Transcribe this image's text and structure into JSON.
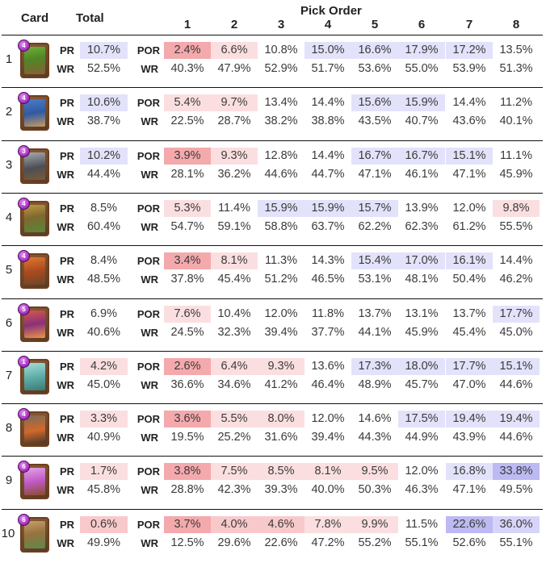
{
  "headers": {
    "card": "Card",
    "total": "Total",
    "pick_order": "Pick Order",
    "picks": [
      "1",
      "2",
      "3",
      "4",
      "5",
      "6",
      "7",
      "8"
    ]
  },
  "labels": {
    "pr": "PR",
    "wr": "WR",
    "por": "POR"
  },
  "colors": {
    "low_strong": "#f4a9ac",
    "low_mid": "#f8c9cb",
    "low_light": "#fbdfe0",
    "high_light": "#e3e2fb",
    "high_mid": "#d6d4f8",
    "high_strong": "#bdb9f2"
  },
  "rows": [
    {
      "num": "1",
      "card_icon": "goblin-barrel-card-icon",
      "elixir": "4",
      "pr": "10.7%",
      "pr_shade": "high_light",
      "wr": "52.5%",
      "por": [
        "2.4%",
        "6.6%",
        "10.8%",
        "15.0%",
        "16.6%",
        "17.9%",
        "17.2%",
        "13.5%"
      ],
      "por_shade": [
        "low_strong",
        "low_light",
        "",
        "high_light",
        "high_light",
        "high_light",
        "high_light",
        ""
      ],
      "pwr": [
        "40.3%",
        "47.9%",
        "52.9%",
        "51.7%",
        "53.6%",
        "55.0%",
        "53.9%",
        "51.3%"
      ]
    },
    {
      "num": "2",
      "card_icon": "magic-archer-card-icon",
      "elixir": "4",
      "pr": "10.6%",
      "pr_shade": "high_light",
      "wr": "38.7%",
      "por": [
        "5.4%",
        "9.7%",
        "13.4%",
        "14.4%",
        "15.6%",
        "15.9%",
        "14.4%",
        "11.2%"
      ],
      "por_shade": [
        "low_light",
        "low_light",
        "",
        "",
        "high_light",
        "high_light",
        "",
        ""
      ],
      "pwr": [
        "22.5%",
        "28.7%",
        "38.2%",
        "38.8%",
        "43.5%",
        "40.7%",
        "43.6%",
        "40.1%"
      ]
    },
    {
      "num": "3",
      "card_icon": "cannon-card-icon",
      "elixir": "3",
      "pr": "10.2%",
      "pr_shade": "high_light",
      "wr": "44.4%",
      "por": [
        "3.9%",
        "9.3%",
        "12.8%",
        "14.4%",
        "16.7%",
        "16.7%",
        "15.1%",
        "11.1%"
      ],
      "por_shade": [
        "low_strong",
        "low_light",
        "",
        "",
        "high_light",
        "high_light",
        "high_light",
        ""
      ],
      "pwr": [
        "28.1%",
        "36.2%",
        "44.6%",
        "44.7%",
        "47.1%",
        "46.1%",
        "47.1%",
        "45.9%"
      ]
    },
    {
      "num": "4",
      "card_icon": "goblin-hut-card-icon",
      "elixir": "4",
      "pr": "8.5%",
      "pr_shade": "",
      "wr": "60.4%",
      "por": [
        "5.3%",
        "11.4%",
        "15.9%",
        "15.9%",
        "15.7%",
        "13.9%",
        "12.0%",
        "9.8%"
      ],
      "por_shade": [
        "low_light",
        "",
        "high_light",
        "high_light",
        "high_light",
        "",
        "",
        "low_light"
      ],
      "pwr": [
        "54.7%",
        "59.1%",
        "58.8%",
        "63.7%",
        "62.2%",
        "62.3%",
        "61.2%",
        "55.5%"
      ]
    },
    {
      "num": "5",
      "card_icon": "bomb-tower-card-icon",
      "elixir": "4",
      "pr": "8.4%",
      "pr_shade": "",
      "wr": "48.5%",
      "por": [
        "3.4%",
        "8.1%",
        "11.3%",
        "14.3%",
        "15.4%",
        "17.0%",
        "16.1%",
        "14.4%"
      ],
      "por_shade": [
        "low_strong",
        "low_light",
        "",
        "",
        "high_light",
        "high_light",
        "high_light",
        ""
      ],
      "pwr": [
        "37.8%",
        "45.4%",
        "51.2%",
        "46.5%",
        "53.1%",
        "48.1%",
        "50.4%",
        "46.2%"
      ]
    },
    {
      "num": "6",
      "card_icon": "wizard-card-icon",
      "elixir": "5",
      "pr": "6.9%",
      "pr_shade": "",
      "wr": "40.6%",
      "por": [
        "7.6%",
        "10.4%",
        "12.0%",
        "11.8%",
        "13.7%",
        "13.1%",
        "13.7%",
        "17.7%"
      ],
      "por_shade": [
        "low_light",
        "",
        "",
        "",
        "",
        "",
        "",
        "high_light"
      ],
      "pwr": [
        "24.5%",
        "32.3%",
        "39.4%",
        "37.7%",
        "44.1%",
        "45.9%",
        "45.4%",
        "45.0%"
      ]
    },
    {
      "num": "7",
      "card_icon": "ice-spirit-card-icon",
      "elixir": "1",
      "pr": "4.2%",
      "pr_shade": "low_light",
      "wr": "45.0%",
      "por": [
        "2.6%",
        "6.4%",
        "9.3%",
        "13.6%",
        "17.3%",
        "18.0%",
        "17.7%",
        "15.1%"
      ],
      "por_shade": [
        "low_strong",
        "low_light",
        "low_light",
        "",
        "high_light",
        "high_light",
        "high_light",
        "high_light"
      ],
      "pwr": [
        "36.6%",
        "34.6%",
        "41.2%",
        "46.4%",
        "48.9%",
        "45.7%",
        "47.0%",
        "44.6%"
      ]
    },
    {
      "num": "8",
      "card_icon": "furnace-card-icon",
      "elixir": "4",
      "pr": "3.3%",
      "pr_shade": "low_light",
      "wr": "40.9%",
      "por": [
        "3.6%",
        "5.5%",
        "8.0%",
        "12.0%",
        "14.6%",
        "17.5%",
        "19.4%",
        "19.4%"
      ],
      "por_shade": [
        "low_strong",
        "low_light",
        "low_light",
        "",
        "",
        "high_light",
        "high_light",
        "high_light"
      ],
      "pwr": [
        "19.5%",
        "25.2%",
        "31.6%",
        "39.4%",
        "44.3%",
        "44.9%",
        "43.9%",
        "44.6%"
      ]
    },
    {
      "num": "9",
      "card_icon": "elixir-collector-card-icon",
      "elixir": "6",
      "pr": "1.7%",
      "pr_shade": "low_light",
      "wr": "45.8%",
      "por": [
        "3.8%",
        "7.5%",
        "8.5%",
        "8.1%",
        "9.5%",
        "12.0%",
        "16.8%",
        "33.8%"
      ],
      "por_shade": [
        "low_strong",
        "low_light",
        "low_light",
        "low_light",
        "low_light",
        "",
        "high_light",
        "high_strong"
      ],
      "pwr": [
        "28.8%",
        "42.3%",
        "39.3%",
        "40.0%",
        "50.3%",
        "46.3%",
        "47.1%",
        "49.5%"
      ]
    },
    {
      "num": "10",
      "card_icon": "barbarian-hut-card-icon",
      "elixir": "6",
      "pr": "0.6%",
      "pr_shade": "low_mid",
      "wr": "49.9%",
      "por": [
        "3.7%",
        "4.0%",
        "4.6%",
        "7.8%",
        "9.9%",
        "11.5%",
        "22.6%",
        "36.0%"
      ],
      "por_shade": [
        "low_strong",
        "low_mid",
        "low_mid",
        "low_light",
        "low_light",
        "",
        "high_strong",
        "high_mid"
      ],
      "pwr": [
        "12.5%",
        "29.6%",
        "22.6%",
        "47.2%",
        "55.2%",
        "55.1%",
        "52.6%",
        "55.1%"
      ]
    }
  ]
}
